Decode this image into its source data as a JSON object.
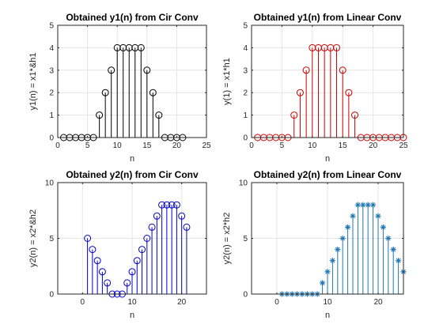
{
  "chart_data": [
    {
      "type": "stem",
      "title": "Obtained y1(n) from Cir Conv",
      "xlabel": "n",
      "ylabel": "y1(n) = x1*&h1",
      "xlim": [
        0,
        25
      ],
      "ylim": [
        0,
        5
      ],
      "xticks": [
        0,
        5,
        10,
        15,
        20,
        25
      ],
      "yticks": [
        0,
        1,
        2,
        3,
        4,
        5
      ],
      "grid": true,
      "marker": "circle",
      "color": "#000000",
      "x": [
        1,
        2,
        3,
        4,
        5,
        6,
        7,
        8,
        9,
        10,
        11,
        12,
        13,
        14,
        15,
        16,
        17,
        18,
        19,
        20,
        21
      ],
      "y": [
        0,
        0,
        0,
        0,
        0,
        0,
        1,
        2,
        3,
        4,
        4,
        4,
        4,
        4,
        3,
        2,
        1,
        0,
        0,
        0,
        0
      ]
    },
    {
      "type": "stem",
      "title": "Obtained y1(n) from Linear Conv",
      "xlabel": "n",
      "ylabel": "y(1) = x1*h1",
      "xlim": [
        0,
        25
      ],
      "ylim": [
        0,
        5
      ],
      "xticks": [
        0,
        5,
        10,
        15,
        20,
        25
      ],
      "yticks": [
        0,
        1,
        2,
        3,
        4,
        5
      ],
      "grid": true,
      "marker": "circle",
      "color": "#cc0000",
      "x": [
        1,
        2,
        3,
        4,
        5,
        6,
        7,
        8,
        9,
        10,
        11,
        12,
        13,
        14,
        15,
        16,
        17,
        18,
        19,
        20,
        21,
        22,
        23,
        24,
        25
      ],
      "y": [
        0,
        0,
        0,
        0,
        0,
        0,
        1,
        2,
        3,
        4,
        4,
        4,
        4,
        4,
        3,
        2,
        1,
        0,
        0,
        0,
        0,
        0,
        0,
        0,
        0
      ]
    },
    {
      "type": "stem",
      "title": "Obtained y2(n) from Cir Conv",
      "xlabel": "n",
      "ylabel": "y2(n) = x2*&h2",
      "xlim": [
        -5,
        25
      ],
      "ylim": [
        0,
        10
      ],
      "xticks": [
        0,
        10,
        20
      ],
      "yticks": [
        0,
        5,
        10
      ],
      "grid": true,
      "marker": "circle",
      "color": "#0000cc",
      "x": [
        1,
        2,
        3,
        4,
        5,
        6,
        7,
        8,
        9,
        10,
        11,
        12,
        13,
        14,
        15,
        16,
        17,
        18,
        19,
        20,
        21
      ],
      "y": [
        5,
        4,
        3,
        2,
        1,
        0,
        0,
        0,
        1,
        2,
        3,
        4,
        5,
        6,
        7,
        8,
        8,
        8,
        8,
        7,
        6
      ]
    },
    {
      "type": "stem",
      "title": "Obtained y2(n) from Linear Conv",
      "xlabel": "n",
      "ylabel": "y2(n) = x2*h2",
      "xlim": [
        -5,
        25
      ],
      "ylim": [
        0,
        10
      ],
      "xticks": [
        0,
        10,
        20
      ],
      "yticks": [
        0,
        5,
        10
      ],
      "grid": true,
      "marker": "asterisk",
      "color": "#1f77b4",
      "x": [
        1,
        2,
        3,
        4,
        5,
        6,
        7,
        8,
        9,
        10,
        11,
        12,
        13,
        14,
        15,
        16,
        17,
        18,
        19,
        20,
        21,
        22,
        23,
        24,
        25
      ],
      "y": [
        0,
        0,
        0,
        0,
        0,
        0,
        0,
        0,
        1,
        2,
        3,
        4,
        5,
        6,
        7,
        8,
        8,
        8,
        8,
        7,
        6,
        5,
        4,
        3,
        2
      ]
    }
  ]
}
